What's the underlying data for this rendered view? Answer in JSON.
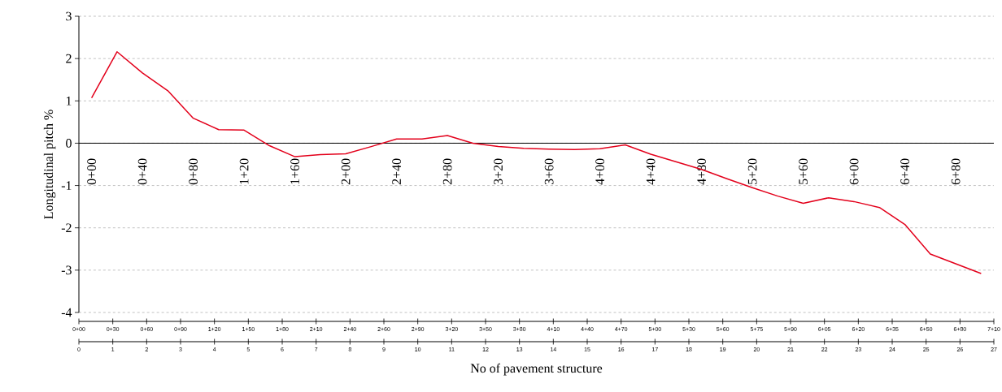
{
  "chart_data": [
    {
      "type": "line",
      "ylabel": "Longitudinal pitch %",
      "color": "#e3001b",
      "grid": "y",
      "ylim": [
        -4,
        3
      ],
      "yticks": [
        -4,
        -3,
        -2,
        -1,
        0,
        1,
        2,
        3
      ],
      "categories": [
        "0+00",
        null,
        "0+40",
        null,
        "0+80",
        null,
        "1+20",
        null,
        "1+60",
        null,
        "2+00",
        null,
        "2+40",
        null,
        "2+80",
        null,
        "3+20",
        null,
        "3+60",
        null,
        "4+00",
        null,
        "4+40",
        null,
        "4+80",
        null,
        "5+20",
        null,
        "5+60",
        null,
        "6+00",
        null,
        "6+40",
        null,
        "6+80",
        null
      ],
      "x2label": "No of pavement structure",
      "x2lim": [
        0,
        27
      ],
      "x2ticks": [
        0,
        1,
        2,
        3,
        4,
        5,
        6,
        7,
        8,
        9,
        10,
        11,
        12,
        13,
        14,
        15,
        16,
        17,
        18,
        19,
        20,
        21,
        22,
        23,
        24,
        25,
        26,
        27
      ],
      "values": [
        1.07,
        2.16,
        1.66,
        1.24,
        0.59,
        0.32,
        0.31,
        -0.06,
        -0.32,
        -0.27,
        -0.25,
        -0.08,
        0.1,
        0.1,
        0.18,
        0.0,
        -0.08,
        -0.12,
        -0.14,
        -0.15,
        -0.13,
        -0.04,
        -0.26,
        -0.44,
        -0.62,
        -0.84,
        -1.05,
        -1.25,
        -1.42,
        -1.29,
        -1.38,
        -1.52,
        -1.92,
        -2.62,
        -2.85,
        -3.08
      ]
    },
    {
      "type": "other",
      "categories": [
        "0+00",
        "0+30",
        "0+60",
        "0+90",
        "1+20",
        "1+50",
        "1+80",
        "2+10",
        "2+40",
        "2+60",
        "2+90",
        "3+20",
        "3+50",
        "3+80",
        "4+10",
        "4+40",
        "4+70",
        "5+00",
        "5+30",
        "5+60",
        "5+75",
        "5+90",
        "6+05",
        "6+20",
        "6+35",
        "6+50",
        "6+80",
        "7+10"
      ]
    }
  ]
}
